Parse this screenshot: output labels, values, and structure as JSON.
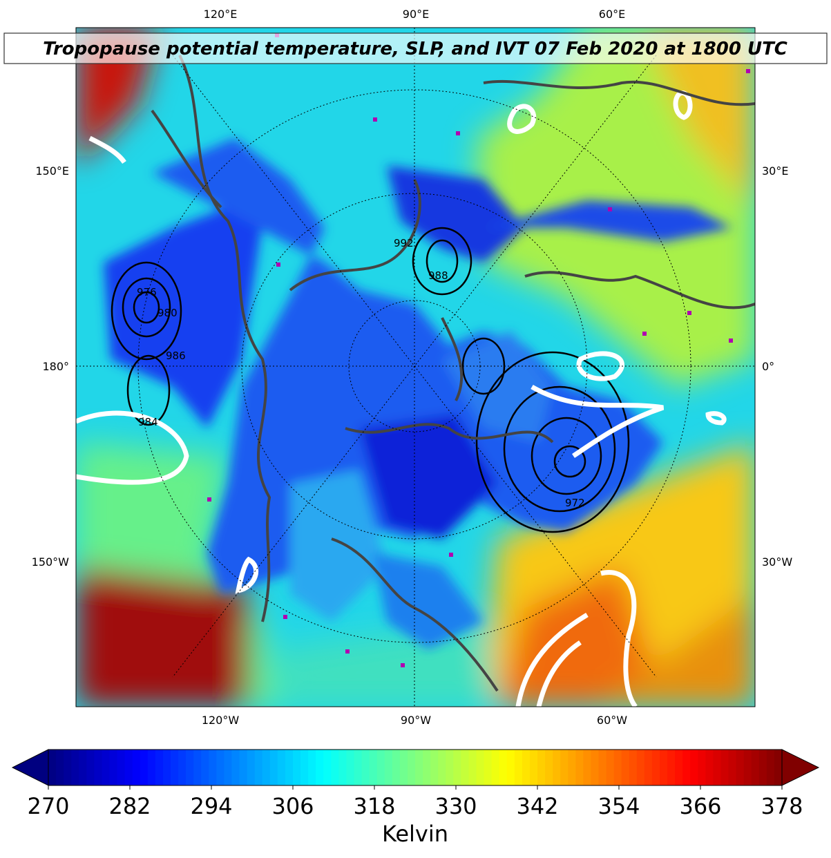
{
  "title": "Tropopause potential temperature, SLP, and IVT 07 Feb 2020 at 1800 UTC",
  "lon_labels": {
    "top": [
      "120°E",
      "90°E",
      "60°E"
    ],
    "left": [
      "150°E",
      "180°",
      "150°W"
    ],
    "right": [
      "30°E",
      "0°",
      "30°W"
    ],
    "bottom": [
      "120°W",
      "90°W",
      "60°W"
    ]
  },
  "contour_labels": [
    "992",
    "988",
    "976",
    "980",
    "984",
    "986",
    "972"
  ],
  "colorbar": {
    "colormap": "jet",
    "lim": [
      270,
      378
    ],
    "ticks": [
      270,
      282,
      294,
      306,
      318,
      330,
      342,
      354,
      366,
      378
    ],
    "label": "Kelvin",
    "extend": "both"
  }
}
